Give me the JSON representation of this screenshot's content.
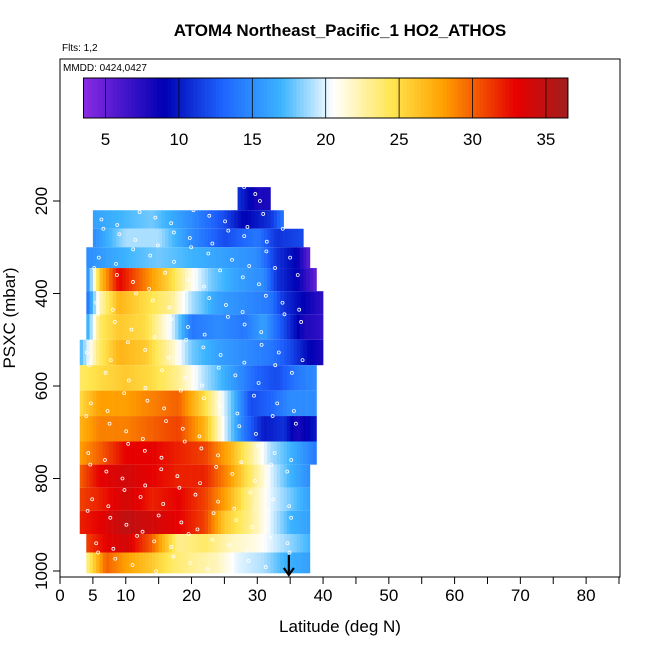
{
  "chart_data": {
    "type": "heatmap",
    "title": "ATOM4 Northeast_Pacific_1 HO2_ATHOS",
    "flights_label": "Flts: 1,2",
    "dates_label": "MMDD: 0424,0427",
    "xlabel": "Latitude (deg N)",
    "ylabel": "PSXC (mbar)",
    "xlim": [
      0,
      85
    ],
    "ylim": [
      1010,
      0
    ],
    "x_ticks": [
      0,
      5,
      10,
      20,
      30,
      40,
      50,
      60,
      70,
      80
    ],
    "x_minor_ticks": [
      15,
      25,
      35,
      45,
      55,
      65,
      75,
      85
    ],
    "y_ticks": [
      200,
      400,
      600,
      800,
      1000
    ],
    "colorbar": {
      "min": 3.5,
      "max": 36.5,
      "ticks": [
        5,
        10,
        15,
        20,
        25,
        30,
        35
      ],
      "colors": [
        "#8a2be2",
        "#0000b4",
        "#1e64ff",
        "#3cb4ff",
        "#ffffff",
        "#ffe650",
        "#ffa000",
        "#e60000",
        "#a01e1e"
      ],
      "color_positions": [
        3.5,
        9.0,
        13.0,
        17.0,
        20.5,
        24.5,
        28.0,
        33.0,
        36.5
      ]
    },
    "profiles": [
      {
        "p_top": 170,
        "p_bot": 220,
        "lat_min": 27,
        "lat_max": 32,
        "values": [
          [
            27,
            11
          ],
          [
            30,
            8
          ],
          [
            32,
            8
          ]
        ]
      },
      {
        "p_top": 220,
        "p_bot": 260,
        "lat_min": 5,
        "lat_max": 34,
        "values": [
          [
            5,
            16
          ],
          [
            9,
            17
          ],
          [
            14,
            18
          ],
          [
            20,
            15
          ],
          [
            25,
            12
          ],
          [
            28,
            9
          ],
          [
            32,
            11
          ],
          [
            34,
            14
          ]
        ]
      },
      {
        "p_top": 260,
        "p_bot": 300,
        "lat_min": 5,
        "lat_max": 37,
        "values": [
          [
            5,
            15
          ],
          [
            10,
            19
          ],
          [
            15,
            19
          ],
          [
            20,
            15
          ],
          [
            25,
            12
          ],
          [
            30,
            14
          ],
          [
            33,
            11
          ],
          [
            37,
            12
          ]
        ]
      },
      {
        "p_top": 300,
        "p_bot": 345,
        "lat_min": 4,
        "lat_max": 38,
        "values": [
          [
            4,
            15
          ],
          [
            10,
            17
          ],
          [
            15,
            18
          ],
          [
            20,
            17
          ],
          [
            25,
            16
          ],
          [
            30,
            15
          ],
          [
            33,
            11
          ],
          [
            36,
            9
          ],
          [
            38,
            5
          ]
        ]
      },
      {
        "p_top": 345,
        "p_bot": 395,
        "lat_min": 4,
        "lat_max": 39,
        "values": [
          [
            4,
            14
          ],
          [
            6,
            26
          ],
          [
            9,
            33
          ],
          [
            13,
            29
          ],
          [
            17,
            25
          ],
          [
            20,
            21
          ],
          [
            23,
            18
          ],
          [
            27,
            16
          ],
          [
            31,
            15
          ],
          [
            33,
            11
          ],
          [
            36,
            9
          ],
          [
            39,
            5
          ]
        ]
      },
      {
        "p_top": 395,
        "p_bot": 445,
        "lat_min": 4,
        "lat_max": 40,
        "values": [
          [
            4,
            13
          ],
          [
            6,
            22
          ],
          [
            9,
            27
          ],
          [
            13,
            25
          ],
          [
            17,
            23
          ],
          [
            20,
            19
          ],
          [
            24,
            16
          ],
          [
            28,
            15
          ],
          [
            32,
            14
          ],
          [
            34,
            11
          ],
          [
            37,
            9
          ],
          [
            40,
            7
          ]
        ]
      },
      {
        "p_top": 445,
        "p_bot": 500,
        "lat_min": 4,
        "lat_max": 40,
        "values": [
          [
            4,
            16
          ],
          [
            6,
            24
          ],
          [
            9,
            26
          ],
          [
            13,
            25
          ],
          [
            17,
            20
          ],
          [
            20,
            14
          ],
          [
            24,
            15
          ],
          [
            28,
            14
          ],
          [
            31,
            16
          ],
          [
            34,
            12
          ],
          [
            37,
            8
          ],
          [
            40,
            7
          ]
        ]
      },
      {
        "p_top": 500,
        "p_bot": 555,
        "lat_min": 3,
        "lat_max": 40,
        "values": [
          [
            3,
            17
          ],
          [
            6,
            24
          ],
          [
            9,
            27
          ],
          [
            13,
            26
          ],
          [
            17,
            22
          ],
          [
            20,
            18
          ],
          [
            24,
            16
          ],
          [
            28,
            15
          ],
          [
            32,
            14
          ],
          [
            35,
            12
          ],
          [
            38,
            9
          ],
          [
            40,
            8
          ]
        ]
      },
      {
        "p_top": 555,
        "p_bot": 610,
        "lat_min": 3,
        "lat_max": 39,
        "values": [
          [
            3,
            24
          ],
          [
            6,
            25
          ],
          [
            10,
            26
          ],
          [
            14,
            25
          ],
          [
            18,
            23
          ],
          [
            22,
            19
          ],
          [
            26,
            16
          ],
          [
            30,
            13
          ],
          [
            33,
            12
          ],
          [
            36,
            14
          ],
          [
            39,
            15
          ]
        ]
      },
      {
        "p_top": 610,
        "p_bot": 665,
        "lat_min": 3,
        "lat_max": 39,
        "values": [
          [
            3,
            25
          ],
          [
            6,
            28
          ],
          [
            10,
            28
          ],
          [
            14,
            29
          ],
          [
            18,
            30
          ],
          [
            22,
            25
          ],
          [
            26,
            18
          ],
          [
            29,
            12
          ],
          [
            32,
            13
          ],
          [
            35,
            15
          ],
          [
            39,
            15
          ]
        ]
      },
      {
        "p_top": 665,
        "p_bot": 720,
        "lat_min": 3,
        "lat_max": 39,
        "values": [
          [
            3,
            27
          ],
          [
            6,
            29
          ],
          [
            10,
            29
          ],
          [
            14,
            30
          ],
          [
            18,
            31
          ],
          [
            22,
            27
          ],
          [
            25,
            20
          ],
          [
            28,
            14
          ],
          [
            31,
            10
          ],
          [
            34,
            11
          ],
          [
            36,
            8
          ],
          [
            39,
            10
          ]
        ]
      },
      {
        "p_top": 720,
        "p_bot": 770,
        "lat_min": 3,
        "lat_max": 39,
        "values": [
          [
            3,
            28
          ],
          [
            6,
            30
          ],
          [
            10,
            33
          ],
          [
            14,
            33
          ],
          [
            18,
            32
          ],
          [
            22,
            31
          ],
          [
            26,
            27
          ],
          [
            29,
            23
          ],
          [
            32,
            19
          ],
          [
            35,
            17
          ],
          [
            39,
            14
          ]
        ]
      },
      {
        "p_top": 770,
        "p_bot": 820,
        "lat_min": 3,
        "lat_max": 38,
        "values": [
          [
            3,
            30
          ],
          [
            6,
            33
          ],
          [
            10,
            34
          ],
          [
            14,
            33
          ],
          [
            18,
            32
          ],
          [
            22,
            32
          ],
          [
            26,
            28
          ],
          [
            29,
            24
          ],
          [
            32,
            20
          ],
          [
            35,
            17
          ],
          [
            38,
            15
          ]
        ]
      },
      {
        "p_top": 820,
        "p_bot": 870,
        "lat_min": 3,
        "lat_max": 38,
        "values": [
          [
            3,
            31
          ],
          [
            6,
            32
          ],
          [
            10,
            34
          ],
          [
            14,
            32
          ],
          [
            18,
            33
          ],
          [
            22,
            31
          ],
          [
            25,
            28
          ],
          [
            29,
            23
          ],
          [
            32,
            20
          ],
          [
            35,
            18
          ],
          [
            38,
            16
          ]
        ]
      },
      {
        "p_top": 870,
        "p_bot": 920,
        "lat_min": 3,
        "lat_max": 38,
        "values": [
          [
            3,
            32
          ],
          [
            6,
            33
          ],
          [
            10,
            35
          ],
          [
            14,
            34
          ],
          [
            18,
            33
          ],
          [
            22,
            31
          ],
          [
            25,
            26
          ],
          [
            29,
            23
          ],
          [
            32,
            20
          ],
          [
            35,
            17
          ],
          [
            38,
            16
          ]
        ]
      },
      {
        "p_top": 920,
        "p_bot": 960,
        "lat_min": 4,
        "lat_max": 38,
        "values": [
          [
            4,
            31
          ],
          [
            7,
            33
          ],
          [
            10,
            34
          ],
          [
            14,
            30
          ],
          [
            18,
            23
          ],
          [
            22,
            24
          ],
          [
            26,
            22
          ],
          [
            30,
            21
          ],
          [
            34,
            19
          ],
          [
            38,
            17
          ]
        ]
      },
      {
        "p_top": 960,
        "p_bot": 1005,
        "lat_min": 4,
        "lat_max": 38,
        "values": [
          [
            4,
            23
          ],
          [
            7,
            30
          ],
          [
            10,
            28
          ],
          [
            14,
            26
          ],
          [
            17,
            24
          ],
          [
            20,
            23
          ],
          [
            24,
            22
          ],
          [
            27,
            20
          ],
          [
            31,
            19
          ],
          [
            34,
            17
          ],
          [
            38,
            16
          ]
        ]
      }
    ],
    "arrow_latitude": 34.8
  }
}
